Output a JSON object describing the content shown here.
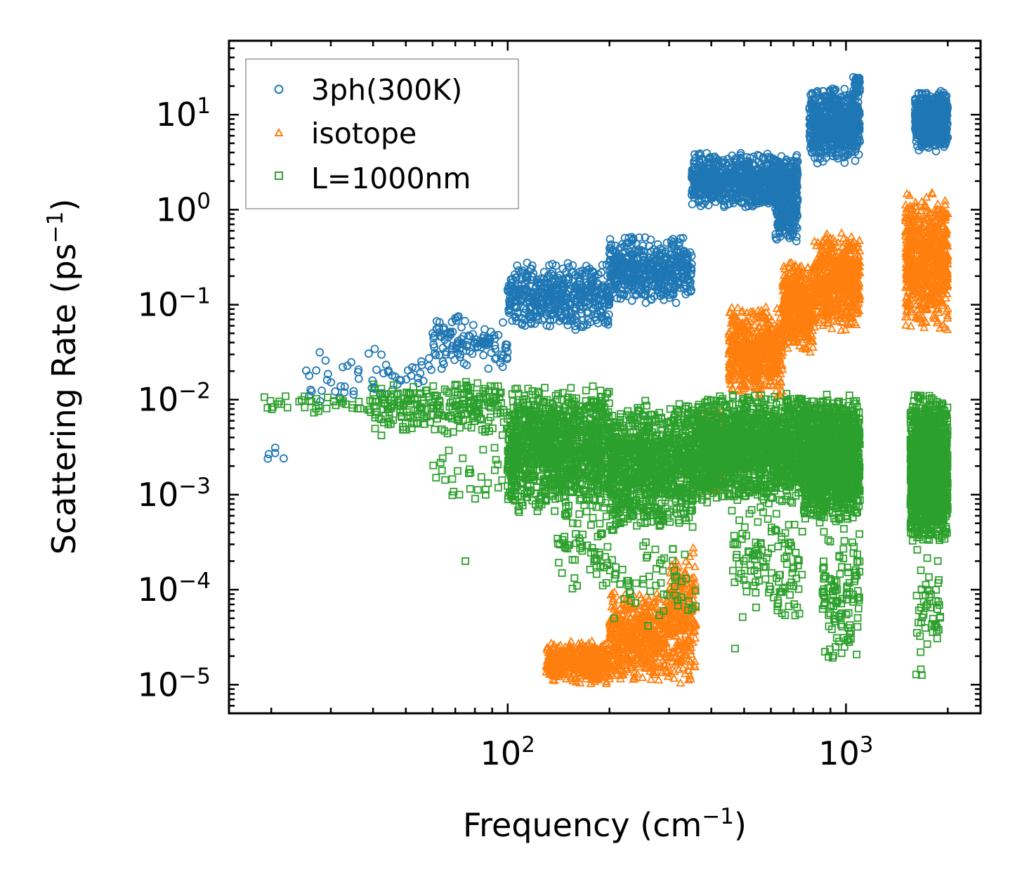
{
  "chart_data": {
    "type": "scatter",
    "title": "",
    "xlabel": {
      "text": "Frequency (cm",
      "sup": "−1",
      "tail": ")"
    },
    "ylabel": {
      "text": "Scattering Rate (ps",
      "sup": "−1",
      "tail": ")"
    },
    "xscale": "log",
    "yscale": "log",
    "xlim": [
      15,
      2500
    ],
    "ylim": [
      5e-06,
      60
    ],
    "xticks": [
      {
        "value": 100,
        "base": "10",
        "exp": "2"
      },
      {
        "value": 1000,
        "base": "10",
        "exp": "3"
      }
    ],
    "yticks": [
      {
        "value": 10,
        "base": "10",
        "exp": "1"
      },
      {
        "value": 1,
        "base": "10",
        "exp": "0"
      },
      {
        "value": 0.1,
        "base": "10",
        "exp": "−1"
      },
      {
        "value": 0.01,
        "base": "10",
        "exp": "−2"
      },
      {
        "value": 0.001,
        "base": "10",
        "exp": "−3"
      },
      {
        "value": 0.0001,
        "base": "10",
        "exp": "−4"
      },
      {
        "value": 1e-05,
        "base": "10",
        "exp": "−5"
      }
    ],
    "legend_position": "top-left",
    "series": [
      {
        "name": "3ph(300K)",
        "marker": "circle",
        "color": "#1f77b4",
        "clusters": [
          {
            "x": [
              19,
              22
            ],
            "y": [
              0.002,
              0.0036
            ],
            "n": 5
          },
          {
            "x": [
              25,
              60
            ],
            "y": [
              0.008,
              0.035
            ],
            "n": 60
          },
          {
            "x": [
              60,
              100
            ],
            "y": [
              0.02,
              0.08
            ],
            "n": 120
          },
          {
            "x": [
              100,
              200
            ],
            "y": [
              0.05,
              0.3
            ],
            "n": 500
          },
          {
            "x": [
              200,
              350
            ],
            "y": [
              0.1,
              0.55
            ],
            "n": 500
          },
          {
            "x": [
              350,
              720
            ],
            "y": [
              1.0,
              4.0
            ],
            "n": 900
          },
          {
            "x": [
              620,
              720
            ],
            "y": [
              0.45,
              2.0
            ],
            "n": 200
          },
          {
            "x": [
              780,
              1100
            ],
            "y": [
              3.0,
              20.0
            ],
            "n": 700
          },
          {
            "x": [
              1050,
              1100
            ],
            "y": [
              15.0,
              28.0
            ],
            "n": 30
          },
          {
            "x": [
              1600,
              2000
            ],
            "y": [
              4.0,
              18.0
            ],
            "n": 600
          }
        ]
      },
      {
        "name": "isotope",
        "marker": "triangle",
        "color": "#ff7f0e",
        "clusters": [
          {
            "x": [
              130,
              200
            ],
            "y": [
              1e-05,
              3e-05
            ],
            "n": 450
          },
          {
            "x": [
              200,
              300
            ],
            "y": [
              1e-05,
              0.0001
            ],
            "n": 550
          },
          {
            "x": [
              300,
              360
            ],
            "y": [
              1e-05,
              0.0003
            ],
            "n": 250
          },
          {
            "x": [
              380,
              450
            ],
            "y": [
              0.001,
              0.01
            ],
            "n": 200
          },
          {
            "x": [
              450,
              650
            ],
            "y": [
              0.01,
              0.1
            ],
            "n": 600
          },
          {
            "x": [
              650,
              800
            ],
            "y": [
              0.03,
              0.3
            ],
            "n": 400
          },
          {
            "x": [
              800,
              1100
            ],
            "y": [
              0.05,
              0.6
            ],
            "n": 600
          },
          {
            "x": [
              1500,
              2000
            ],
            "y": [
              0.05,
              1.6
            ],
            "n": 700
          }
        ]
      },
      {
        "name": "L=1000nm",
        "marker": "square",
        "color": "#2ca02c",
        "clusters": [
          {
            "x": [
              19,
              40
            ],
            "y": [
              0.007,
              0.012
            ],
            "n": 40
          },
          {
            "x": [
              40,
              100
            ],
            "y": [
              0.004,
              0.018
            ],
            "n": 250
          },
          {
            "x": [
              60,
              100
            ],
            "y": [
              0.0008,
              0.004
            ],
            "n": 30
          },
          {
            "x": [
              100,
              200
            ],
            "y": [
              0.0006,
              0.015
            ],
            "n": 1200
          },
          {
            "x": [
              140,
              200
            ],
            "y": [
              8e-05,
              0.0008
            ],
            "n": 60
          },
          {
            "x": [
              200,
              360
            ],
            "y": [
              0.0004,
              0.01
            ],
            "n": 1000
          },
          {
            "x": [
              200,
              360
            ],
            "y": [
              4e-05,
              0.0004
            ],
            "n": 60
          },
          {
            "x": [
              360,
              750
            ],
            "y": [
              0.0008,
              0.012
            ],
            "n": 1500
          },
          {
            "x": [
              460,
              750
            ],
            "y": [
              4e-05,
              0.0008
            ],
            "n": 120
          },
          {
            "x": [
              750,
              1100
            ],
            "y": [
              0.0005,
              0.012
            ],
            "n": 1300
          },
          {
            "x": [
              850,
              1100
            ],
            "y": [
              1.5e-05,
              0.0005
            ],
            "n": 120
          },
          {
            "x": [
              1550,
              2000
            ],
            "y": [
              0.0003,
              0.012
            ],
            "n": 1400
          },
          {
            "x": [
              1600,
              1900
            ],
            "y": [
              1e-05,
              0.0003
            ],
            "n": 50
          }
        ],
        "outliers": [
          {
            "x": 75,
            "y": 0.0002
          },
          {
            "x": 72,
            "y": 0.001
          },
          {
            "x": 470,
            "y": 2.4e-05
          }
        ]
      }
    ]
  }
}
